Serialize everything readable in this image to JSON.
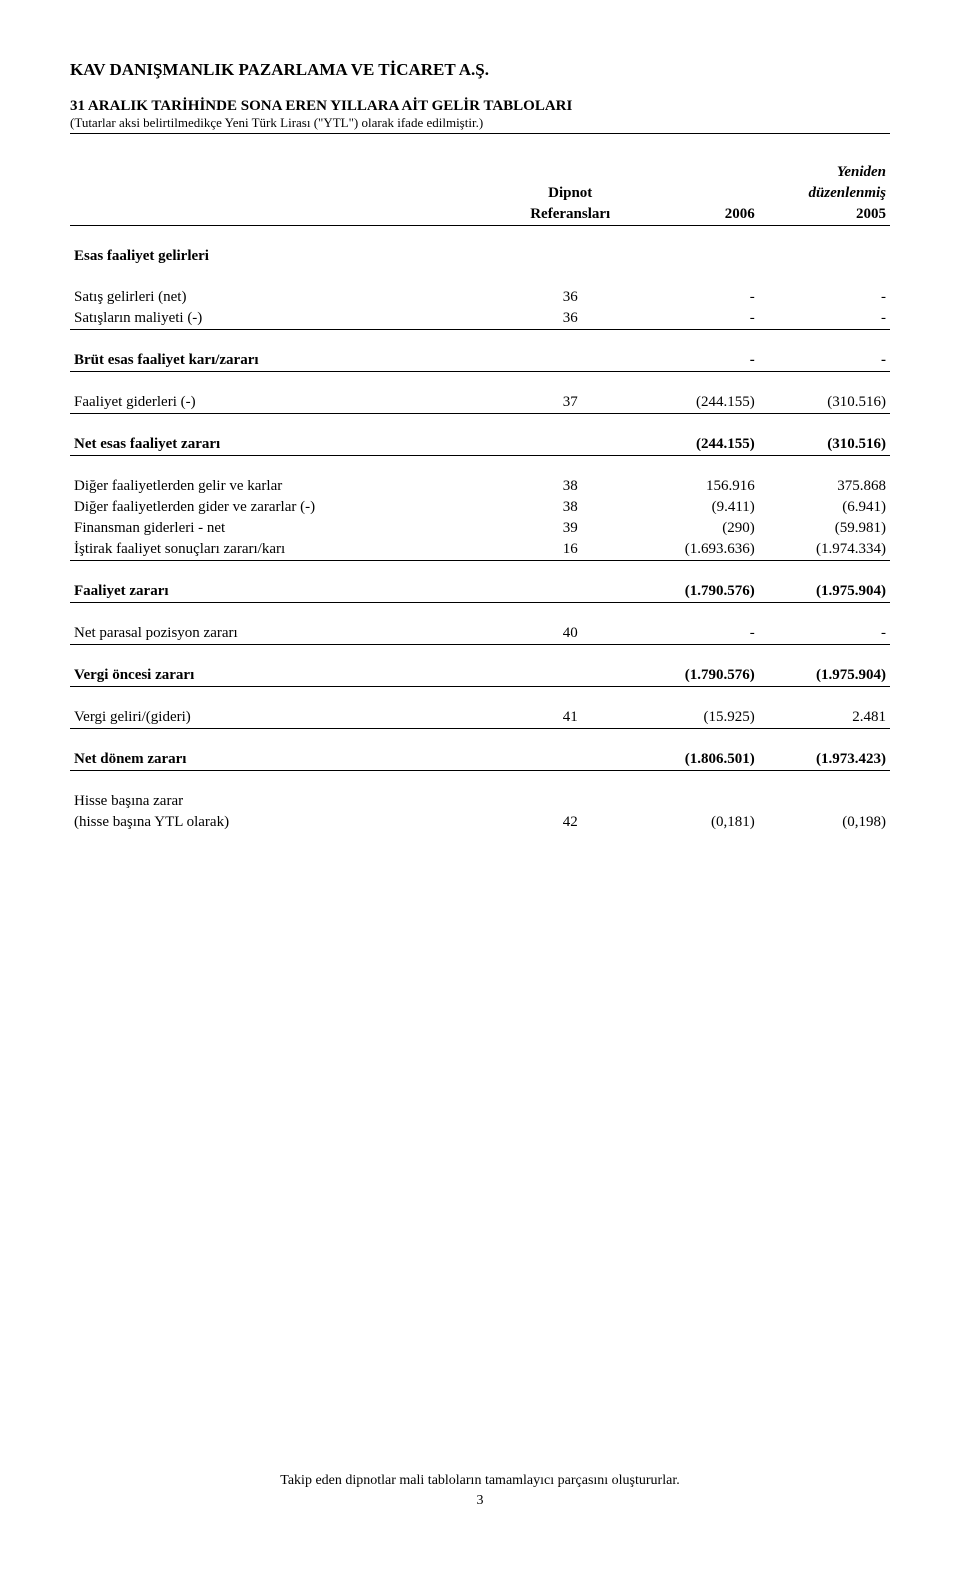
{
  "header": {
    "company": "KAV DANIŞMANLIK PAZARLAMA VE TİCARET A.Ş.",
    "title": "31 ARALIK TARİHİNDE SONA EREN YILLARA AİT GELİR TABLOLARI",
    "subtitle": "(Tutarlar aksi belirtilmedikçe Yeni Türk Lirası (\"YTL\") olarak ifade edilmiştir.)"
  },
  "columns": {
    "ref_line1": "Dipnot",
    "ref_line2": "Referansları",
    "year1": "2006",
    "year2_sup_line1": "Yeniden",
    "year2_sup_line2": "düzenlenmiş",
    "year2": "2005"
  },
  "rows": [
    {
      "label": "Esas faaliyet gelirleri",
      "ref": "",
      "v1": "",
      "v2": "",
      "bold": true,
      "space_after": true
    },
    {
      "label": "Satış gelirleri (net)",
      "ref": "36",
      "v1": "-",
      "v2": "-"
    },
    {
      "label": "Satışların maliyeti (-)",
      "ref": "36",
      "v1": "-",
      "v2": "-",
      "line": true,
      "space_after": true
    },
    {
      "label": "Brüt esas faaliyet karı/zararı",
      "ref": "",
      "v1": "-",
      "v2": "-",
      "bold": true,
      "line": true,
      "space_after": true
    },
    {
      "label": "Faaliyet giderleri (-)",
      "ref": "37",
      "v1": "(244.155)",
      "v2": "(310.516)",
      "line": true,
      "space_after": true
    },
    {
      "label": "Net esas faaliyet zararı",
      "ref": "",
      "v1": "(244.155)",
      "v2": "(310.516)",
      "bold": true,
      "line": true,
      "space_after": true
    },
    {
      "label": "Diğer faaliyetlerden gelir ve karlar",
      "ref": "38",
      "v1": "156.916",
      "v2": "375.868"
    },
    {
      "label": "Diğer faaliyetlerden gider ve zararlar (-)",
      "ref": "38",
      "v1": "(9.411)",
      "v2": "(6.941)"
    },
    {
      "label": "Finansman giderleri - net",
      "ref": "39",
      "v1": "(290)",
      "v2": "(59.981)"
    },
    {
      "label": "İştirak faaliyet sonuçları zararı/karı",
      "ref": "16",
      "v1": "(1.693.636)",
      "v2": "(1.974.334)",
      "line": true,
      "space_after": true
    },
    {
      "label": "Faaliyet zararı",
      "ref": "",
      "v1": "(1.790.576)",
      "v2": "(1.975.904)",
      "bold": true,
      "line": true,
      "space_after": true
    },
    {
      "label": "Net parasal pozisyon zararı",
      "ref": "40",
      "v1": "-",
      "v2": "-",
      "line": true,
      "space_after": true
    },
    {
      "label": "Vergi öncesi zararı",
      "ref": "",
      "v1": "(1.790.576)",
      "v2": "(1.975.904)",
      "bold": true,
      "line": true,
      "space_after": true
    },
    {
      "label": "Vergi geliri/(gideri)",
      "ref": "41",
      "v1": "(15.925)",
      "v2": "2.481",
      "line": true,
      "space_after": true
    },
    {
      "label": "Net dönem zararı",
      "ref": "",
      "v1": "(1.806.501)",
      "v2": "(1.973.423)",
      "bold": true,
      "line": true,
      "space_after": true
    },
    {
      "label": "Hisse başına zarar",
      "ref": "",
      "v1": "",
      "v2": ""
    },
    {
      "label": "(hisse başına YTL olarak)",
      "ref": "42",
      "v1": "(0,181)",
      "v2": "(0,198)"
    }
  ],
  "footer": {
    "note": "Takip eden dipnotlar mali tabloların tamamlayıcı parçasını oluştururlar.",
    "page": "3"
  }
}
